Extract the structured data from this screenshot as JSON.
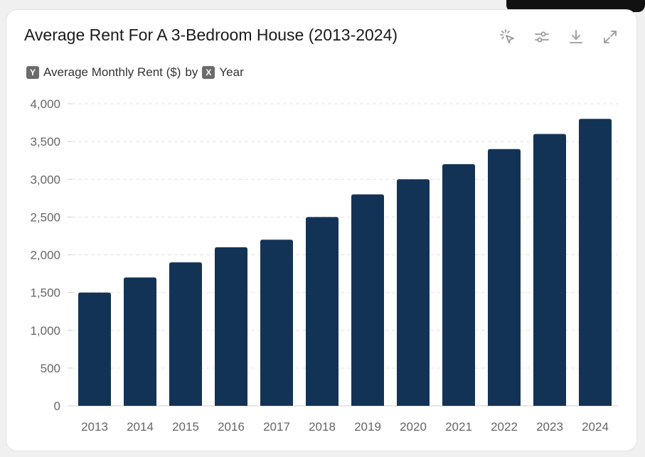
{
  "title": "Average Rent For A 3-Bedroom House (2013-2024)",
  "subtitle": {
    "y_badge": "Y",
    "y_label": "Average Monthly Rent ($)",
    "by": "by",
    "x_badge": "X",
    "x_label": "Year"
  },
  "toolbar": {
    "icons": [
      "magic-select-icon",
      "sliders-icon",
      "download-icon",
      "expand-icon"
    ]
  },
  "colors": {
    "bar": "#133356",
    "grid": "#e2e2e2",
    "icon": "#9a9a9a"
  },
  "chart_data": {
    "type": "bar",
    "categories": [
      "2013",
      "2014",
      "2015",
      "2016",
      "2017",
      "2018",
      "2019",
      "2020",
      "2021",
      "2022",
      "2023",
      "2024"
    ],
    "values": [
      1500,
      1700,
      1900,
      2100,
      2200,
      2500,
      2800,
      3000,
      3200,
      3400,
      3600,
      3800
    ],
    "title": "Average Rent For A 3-Bedroom House (2013-2024)",
    "xlabel": "Year",
    "ylabel": "Average Monthly Rent ($)",
    "ylim": [
      0,
      4000
    ],
    "yticks": [
      "0",
      "500",
      "1,000",
      "1,500",
      "2,000",
      "2,500",
      "3,000",
      "3,500",
      "4,000"
    ],
    "ytick_values": [
      0,
      500,
      1000,
      1500,
      2000,
      2500,
      3000,
      3500,
      4000
    ],
    "grid": true,
    "legend": "none"
  }
}
